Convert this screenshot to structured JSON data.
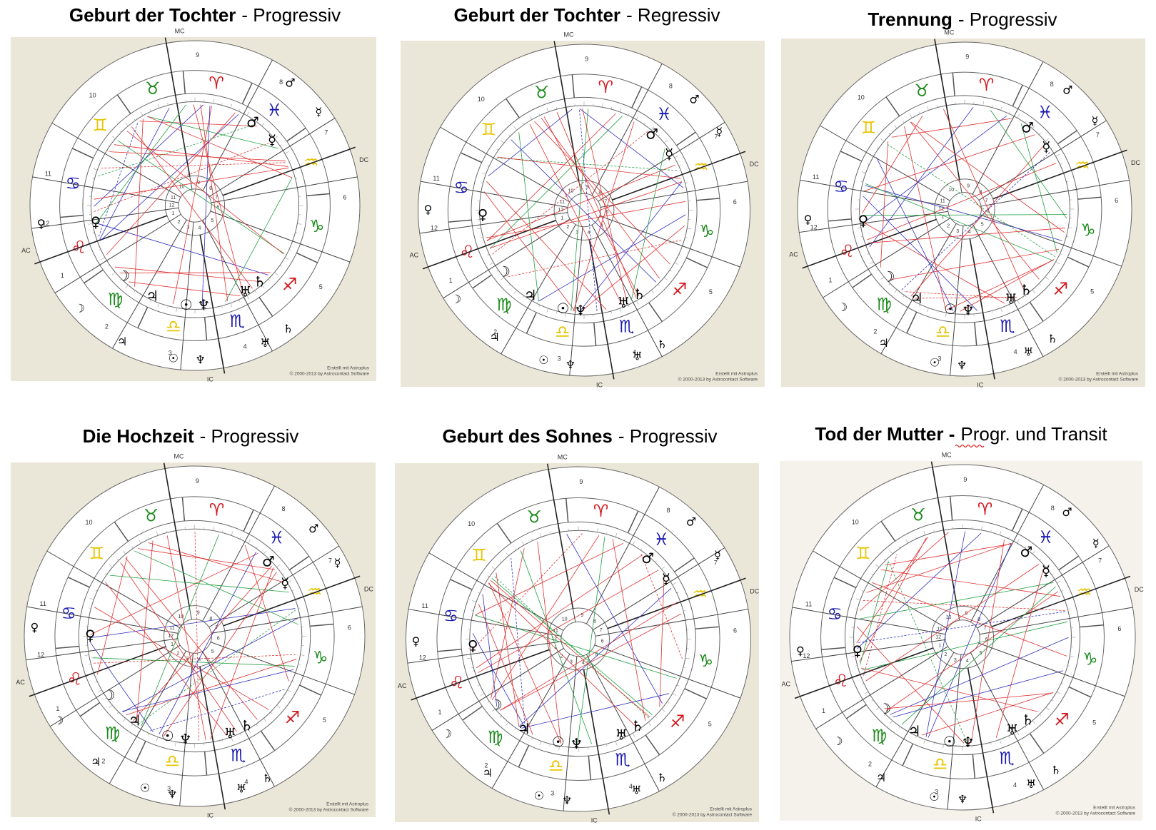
{
  "panels": [
    {
      "title": "Geburt der Tochter",
      "subtitle": "- Progressiv"
    },
    {
      "title": "Geburt der Tochter",
      "subtitle": "- Regressiv"
    },
    {
      "title": "Trennung",
      "subtitle": "- Progressiv"
    },
    {
      "title": "Die Hochzeit",
      "subtitle": "- Progressiv"
    },
    {
      "title": "Geburt des Sohnes",
      "subtitle": "- Progressiv"
    },
    {
      "title": "Tod der Mutter -",
      "subtitle": "Progr. und Transit"
    }
  ],
  "zodiac": [
    "♉",
    "♈",
    "♓",
    "♒",
    "♑",
    "♐",
    "♏",
    "♎",
    "♍",
    "♌",
    "♋",
    "♊"
  ],
  "houses": [
    1,
    2,
    3,
    4,
    5,
    6,
    7,
    8,
    9,
    10,
    11,
    12
  ],
  "angles": [
    "MC",
    "DC",
    "IC",
    "AC"
  ],
  "planets": [
    "☉",
    "☽",
    "☿",
    "♀",
    "♂",
    "♃",
    "♄",
    "♅",
    "♆"
  ],
  "credit": [
    "Erstellt mit Astroplus",
    "© 2000-2013 by Astrocontact Software"
  ]
}
